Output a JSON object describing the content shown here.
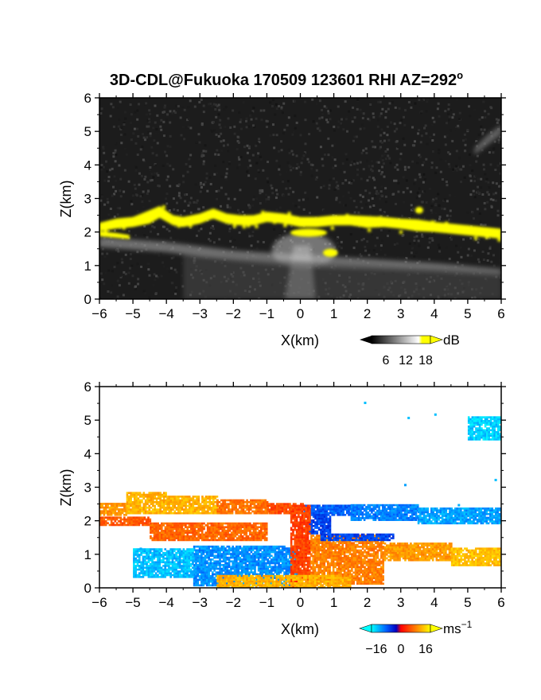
{
  "figure": {
    "title": "3D-CDL@Fukuoka 170509 123601 RHI AZ=292",
    "title_sup": "o"
  },
  "chart_data": [
    {
      "type": "heatmap",
      "name": "backscatter",
      "xlabel": "X(km)",
      "ylabel": "Z(km)",
      "xlim": [
        -6,
        6
      ],
      "ylim": [
        0,
        6
      ],
      "x_ticks": [
        "−6",
        "−5",
        "−4",
        "−3",
        "−2",
        "−1",
        "0",
        "1",
        "2",
        "3",
        "4",
        "5",
        "6"
      ],
      "y_ticks": [
        "0",
        "1",
        "2",
        "3",
        "4",
        "5",
        "6"
      ],
      "colorbar": {
        "unit": "dB",
        "tick_labels": [
          "6",
          "12",
          "18"
        ],
        "ticks": [
          6,
          12,
          18
        ],
        "range": [
          0,
          21
        ],
        "colormap": "grayscale, high values yellow"
      },
      "background_color": "#1c1c1c",
      "yellow_layer": [
        [
          -6,
          2.15,
          0.25
        ],
        [
          -5.5,
          2.25,
          0.3
        ],
        [
          -5,
          2.3,
          0.3
        ],
        [
          -4.5,
          2.45,
          0.4
        ],
        [
          -4.2,
          2.6,
          0.35
        ],
        [
          -3.8,
          2.35,
          0.3
        ],
        [
          -3.5,
          2.3,
          0.3
        ],
        [
          -3,
          2.4,
          0.3
        ],
        [
          -2.6,
          2.55,
          0.3
        ],
        [
          -2.2,
          2.4,
          0.3
        ],
        [
          -1.8,
          2.35,
          0.3
        ],
        [
          -1.4,
          2.35,
          0.3
        ],
        [
          -1,
          2.45,
          0.3
        ],
        [
          -0.5,
          2.4,
          0.3
        ],
        [
          0,
          2.3,
          0.3
        ],
        [
          0.5,
          2.3,
          0.3
        ],
        [
          1,
          2.35,
          0.3
        ],
        [
          1.5,
          2.35,
          0.3
        ],
        [
          2,
          2.3,
          0.35
        ],
        [
          2.5,
          2.3,
          0.3
        ],
        [
          3,
          2.25,
          0.3
        ],
        [
          3.5,
          2.2,
          0.35
        ],
        [
          4,
          2.15,
          0.3
        ],
        [
          4.5,
          2.1,
          0.3
        ],
        [
          5,
          2.05,
          0.3
        ],
        [
          5.5,
          2.0,
          0.3
        ],
        [
          6,
          1.95,
          0.3
        ]
      ],
      "yellow_lower_band": [
        [
          -6,
          1.95,
          0.15
        ],
        [
          -5.5,
          1.9,
          0.15
        ],
        [
          -5.1,
          1.85,
          0.12
        ]
      ],
      "yellow_patches": [
        [
          3.55,
          2.65,
          0.12,
          0.1
        ],
        [
          0.9,
          1.38,
          0.22,
          0.12
        ],
        [
          0.25,
          1.98,
          0.55,
          0.12
        ]
      ],
      "gray_layer": [
        [
          -6,
          1.7,
          0.3
        ],
        [
          -4,
          1.55,
          0.3
        ],
        [
          -2,
          1.3,
          0.3
        ],
        [
          0,
          1.15,
          0.35
        ],
        [
          2,
          1.05,
          0.3
        ],
        [
          4,
          0.95,
          0.25
        ],
        [
          6,
          0.8,
          0.2
        ]
      ]
    },
    {
      "type": "heatmap",
      "name": "doppler_velocity",
      "xlabel": "X(km)",
      "ylabel": "Z(km)",
      "xlim": [
        -6,
        6
      ],
      "ylim": [
        0,
        6
      ],
      "x_ticks": [
        "−6",
        "−5",
        "−4",
        "−3",
        "−2",
        "−1",
        "0",
        "1",
        "2",
        "3",
        "4",
        "5",
        "6"
      ],
      "y_ticks": [
        "0",
        "1",
        "2",
        "3",
        "4",
        "5",
        "6"
      ],
      "colorbar": {
        "unit": "ms",
        "unit_sup": "−1",
        "tick_labels": [
          "−16",
          "0",
          "16"
        ],
        "ticks": [
          -16,
          0,
          16
        ],
        "range": [
          -20,
          20
        ],
        "colormap": "cyan-blue-red-orange-yellow"
      },
      "velocity_segments": [
        {
          "x0": -6,
          "x1": -5.2,
          "z0": 2.15,
          "z1": 2.5,
          "v": 12
        },
        {
          "x0": -5.2,
          "x1": -4,
          "z0": 2.2,
          "z1": 2.85,
          "v": 14
        },
        {
          "x0": -4,
          "x1": -2.5,
          "z0": 2.2,
          "z1": 2.75,
          "v": 14
        },
        {
          "x0": -2.5,
          "x1": -1,
          "z0": 2.2,
          "z1": 2.6,
          "v": 9
        },
        {
          "x0": -1,
          "x1": 0.1,
          "z0": 2.2,
          "z1": 2.5,
          "v": 6
        },
        {
          "x0": 0.1,
          "x1": 1.5,
          "z0": 2.15,
          "z1": 2.45,
          "v": -10
        },
        {
          "x0": 1.5,
          "x1": 3.5,
          "z0": 2.0,
          "z1": 2.45,
          "v": -12
        },
        {
          "x0": 3.5,
          "x1": 6,
          "z0": 1.9,
          "z1": 2.35,
          "v": -14
        },
        {
          "x0": 0.2,
          "x1": 0.9,
          "z0": 1.6,
          "z1": 2.2,
          "v": -8
        },
        {
          "x0": -6,
          "x1": -4.5,
          "z0": 1.85,
          "z1": 2.1,
          "v": 7
        },
        {
          "x0": -4.5,
          "x1": -1,
          "z0": 1.4,
          "z1": 1.9,
          "v": 8
        },
        {
          "x0": -3.2,
          "x1": -0.1,
          "z0": 0.05,
          "z1": 1.25,
          "v": -13
        },
        {
          "x0": -5,
          "x1": -3.2,
          "z0": 0.3,
          "z1": 1.15,
          "v": -16
        },
        {
          "x0": -0.3,
          "x1": 0.3,
          "z0": 0.0,
          "z1": 2.45,
          "v": 5
        },
        {
          "x0": 0.3,
          "x1": 2.5,
          "z0": 0.1,
          "z1": 1.55,
          "v": 10
        },
        {
          "x0": 0.6,
          "x1": 2.8,
          "z0": 1.4,
          "z1": 1.6,
          "v": -8
        },
        {
          "x0": 2.5,
          "x1": 4.5,
          "z0": 0.8,
          "z1": 1.3,
          "v": 12
        },
        {
          "x0": 4.5,
          "x1": 6,
          "z0": 0.65,
          "z1": 1.15,
          "v": 15
        },
        {
          "x0": 5.0,
          "x1": 6,
          "z0": 4.4,
          "z1": 5.1,
          "v": -17
        },
        {
          "x0": -2.5,
          "x1": 1.5,
          "z0": 0.0,
          "z1": 0.35,
          "v": 14
        }
      ],
      "scattered_points": [
        [
          1.9,
          5.55,
          -16
        ],
        [
          3.2,
          5.1,
          -16
        ],
        [
          4.0,
          5.2,
          -16
        ],
        [
          3.1,
          3.1,
          -14
        ],
        [
          5.8,
          3.25,
          -16
        ],
        [
          -4.8,
          1.2,
          -15
        ],
        [
          4.7,
          2.5,
          -15
        ]
      ]
    }
  ]
}
